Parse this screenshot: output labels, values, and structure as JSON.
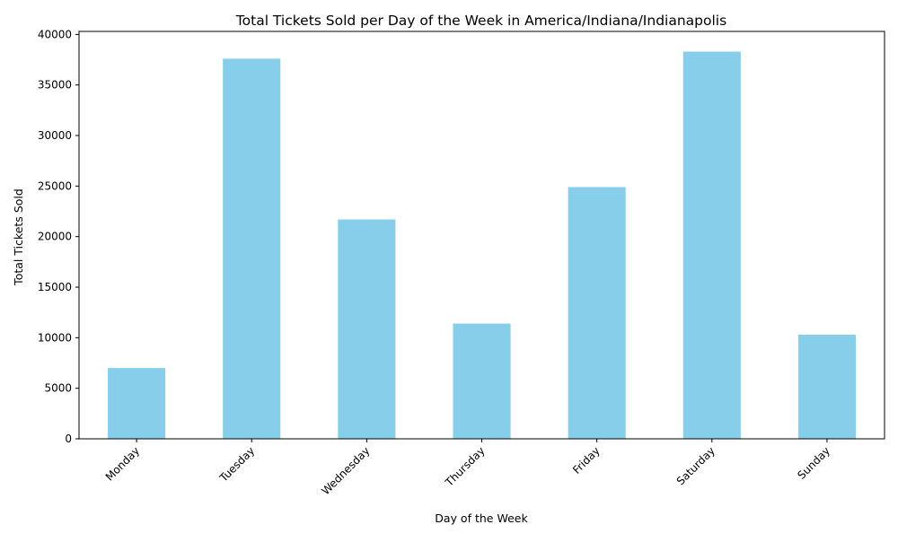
{
  "chart_data": {
    "type": "bar",
    "title": "Total Tickets Sold per Day of the Week in America/Indiana/Indianapolis",
    "xlabel": "Day of the Week",
    "ylabel": "Total Tickets Sold",
    "categories": [
      "Monday",
      "Tuesday",
      "Wednesday",
      "Thursday",
      "Friday",
      "Saturday",
      "Sunday"
    ],
    "values": [
      7000,
      37600,
      21700,
      11400,
      24900,
      38300,
      10300
    ],
    "ylim": [
      0,
      40300
    ],
    "yticks": [
      0,
      5000,
      10000,
      15000,
      20000,
      25000,
      30000,
      35000,
      40000
    ],
    "bar_color": "#87ceeb",
    "grid": false,
    "legend": "none"
  }
}
